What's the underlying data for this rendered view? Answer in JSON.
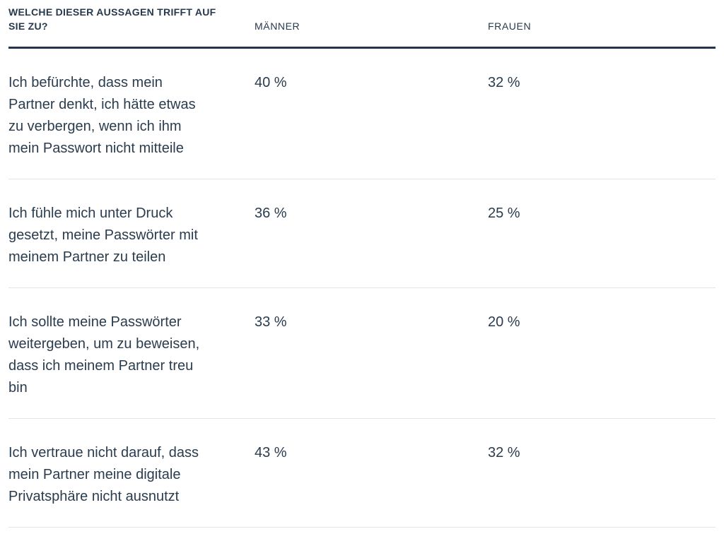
{
  "table": {
    "header": {
      "question": "WELCHE DIESER AUSSAGEN TRIFFT AUF\nSIE ZU?",
      "col_maenner": "MÄNNER",
      "col_frauen": "FRAUEN"
    },
    "rows": [
      {
        "statement": "Ich befürchte, dass mein\nPartner denkt, ich hätte etwas\nzu verbergen, wenn ich ihm\nmein Passwort nicht mitteile",
        "maenner": "40 %",
        "frauen": "32 %"
      },
      {
        "statement": "Ich fühle mich unter Druck\ngesetzt, meine Passwörter mit\nmeinem Partner zu teilen",
        "maenner": "36 %",
        "frauen": "25 %"
      },
      {
        "statement": "Ich sollte meine Passwörter\nweitergeben, um zu beweisen,\ndass ich meinem Partner treu\nbin",
        "maenner": "33 %",
        "frauen": "20 %"
      },
      {
        "statement": "Ich vertraue nicht darauf, dass\nmein Partner meine digitale\nPrivatsphäre nicht ausnutzt",
        "maenner": "43 %",
        "frauen": "32 %"
      }
    ]
  },
  "colors": {
    "text_navy": "#2a3c4e",
    "header_border": "#22354a",
    "row_divider": "#e2e4e6",
    "background": "#ffffff"
  },
  "chart_data": {
    "type": "table",
    "title": "WELCHE DIESER AUSSAGEN TRIFFT AUF SIE ZU?",
    "categories": [
      "Ich befürchte, dass mein Partner denkt, ich hätte etwas zu verbergen, wenn ich ihm mein Passwort nicht mitteile",
      "Ich fühle mich unter Druck gesetzt, meine Passwörter mit meinem Partner zu teilen",
      "Ich sollte meine Passwörter weitergeben, um zu beweisen, dass ich meinem Partner treu bin",
      "Ich vertraue nicht darauf, dass mein Partner meine digitale Privatsphäre nicht ausnutzt"
    ],
    "series": [
      {
        "name": "MÄNNER",
        "values": [
          40,
          36,
          33,
          43
        ]
      },
      {
        "name": "FRAUEN",
        "values": [
          32,
          25,
          20,
          32
        ]
      }
    ],
    "unit": "%"
  }
}
